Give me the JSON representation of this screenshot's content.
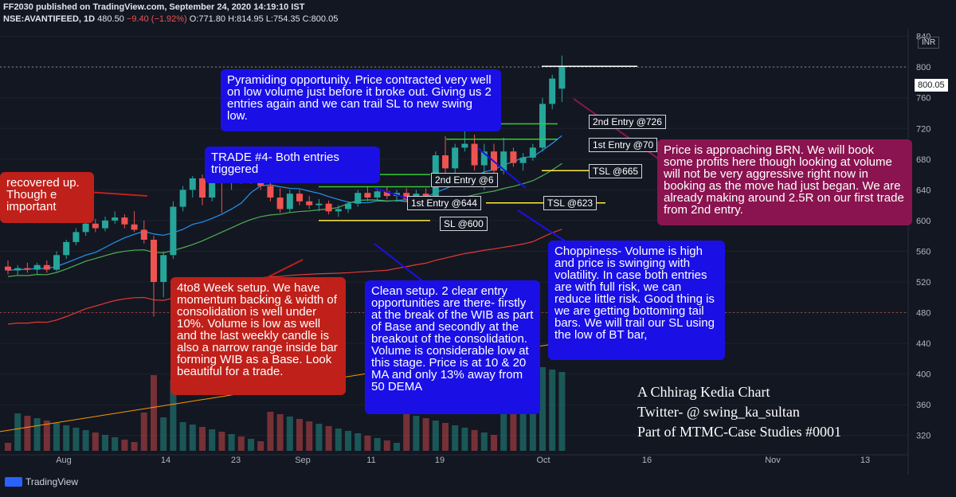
{
  "header": {
    "publisher": "FF2030 published on TradingView.com, September 24, 2020 14:19:10 IST",
    "symbol": "NSE:AVANTIFEED, 1D",
    "last": "480.50",
    "change": "−9.40 (−1.92%)",
    "ohlc": "O:771.80 H:814.95 L:754.35 C:800.05"
  },
  "price_tag": "800.05",
  "currency": "INR",
  "annotations": {
    "pyramiding": "Pyramiding opportunity. Price contracted very well on low volume just before it broke out. Giving us 2 entries again and we can trail SL to new swing low.",
    "trade4": "TRADE #4- Both entries triggered",
    "recovered": "recovered up. Though e important",
    "setup": "4to8 Week setup. We have momentum backing & width of consolidation is well under 10%. Volume is low as well and the last weekly candle is also a narrow range inside bar forming WIB as a Base. Look beautiful for a trade.",
    "clean": "Clean setup. 2 clear entry opportunities are there- firstly at the break of the WIB as part of Base and secondly at the breakout of the consolidation. Volume is considerable low at this stage. Price is at 10 & 20 MA and only 13% away from 50 DEMA",
    "choppiness": "Choppiness- Volume is high and price is swinging with volatility. In case both entries are with full risk, we can reduce little risk. Good thing is we are getting bottoming tail bars. We will trail our SL using the low of BT bar,",
    "brn": "Price is approaching BRN. We will book some profits here though looking at volume will not be very aggressive right now in booking as the move had just began. We are already making around 2.5R on our first trade from 2nd entry."
  },
  "levels": {
    "entry2_new": "2nd Entry @726",
    "entry1_new": "1st Entry @70",
    "tsl665": "TSL @665",
    "entry2_old": "2nd Entry @6",
    "entry1_old": "1st Entry @644",
    "tsl623": "TSL @623",
    "sl600": "SL @600"
  },
  "credit": {
    "line1": "A Chhirag Kedia Chart",
    "line2": "Twitter- @ swing_ka_sultan",
    "line3": "Part of MTMC-Case Studies #0001"
  },
  "brand": "TradingView",
  "colors": {
    "up": "#26a69a",
    "down": "#ef5350",
    "ma10": "#2196f3",
    "ma20": "#4caf50",
    "dema50": "#e53935",
    "level_green": "#33cc33",
    "level_yellow": "#ffeb3b",
    "trend": "#ff9800"
  },
  "chart_data": {
    "type": "candlestick",
    "y_axis_ticks": [
      840,
      800,
      760,
      720,
      680,
      640,
      600,
      560,
      520,
      480,
      440,
      400,
      360,
      320
    ],
    "ylim": [
      300,
      850
    ],
    "x_tick_labels": [
      "Aug",
      "14",
      "23",
      "Sep",
      "11",
      "19",
      "Oct",
      "16",
      "Nov",
      "13"
    ],
    "candles": [
      {
        "o": 540,
        "h": 548,
        "l": 530,
        "c": 535
      },
      {
        "o": 535,
        "h": 542,
        "l": 528,
        "c": 538
      },
      {
        "o": 538,
        "h": 545,
        "l": 532,
        "c": 536
      },
      {
        "o": 536,
        "h": 545,
        "l": 530,
        "c": 542
      },
      {
        "o": 542,
        "h": 548,
        "l": 532,
        "c": 536
      },
      {
        "o": 536,
        "h": 560,
        "l": 534,
        "c": 555
      },
      {
        "o": 555,
        "h": 575,
        "l": 550,
        "c": 572
      },
      {
        "o": 572,
        "h": 590,
        "l": 568,
        "c": 585
      },
      {
        "o": 585,
        "h": 600,
        "l": 580,
        "c": 596
      },
      {
        "o": 596,
        "h": 602,
        "l": 585,
        "c": 590
      },
      {
        "o": 590,
        "h": 605,
        "l": 586,
        "c": 600
      },
      {
        "o": 600,
        "h": 612,
        "l": 596,
        "c": 604
      },
      {
        "o": 604,
        "h": 608,
        "l": 590,
        "c": 595
      },
      {
        "o": 595,
        "h": 612,
        "l": 585,
        "c": 588
      },
      {
        "o": 588,
        "h": 600,
        "l": 570,
        "c": 575
      },
      {
        "o": 575,
        "h": 580,
        "l": 475,
        "c": 520
      },
      {
        "o": 520,
        "h": 560,
        "l": 500,
        "c": 555
      },
      {
        "o": 555,
        "h": 625,
        "l": 550,
        "c": 618
      },
      {
        "o": 618,
        "h": 645,
        "l": 612,
        "c": 640
      },
      {
        "o": 640,
        "h": 658,
        "l": 630,
        "c": 655
      },
      {
        "o": 655,
        "h": 660,
        "l": 620,
        "c": 630
      },
      {
        "o": 630,
        "h": 660,
        "l": 625,
        "c": 652
      },
      {
        "o": 652,
        "h": 662,
        "l": 610,
        "c": 650
      },
      {
        "o": 650,
        "h": 660,
        "l": 640,
        "c": 655
      },
      {
        "o": 655,
        "h": 662,
        "l": 648,
        "c": 652
      },
      {
        "o": 652,
        "h": 660,
        "l": 648,
        "c": 656
      },
      {
        "o": 656,
        "h": 665,
        "l": 640,
        "c": 645
      },
      {
        "o": 645,
        "h": 652,
        "l": 625,
        "c": 630
      },
      {
        "o": 630,
        "h": 642,
        "l": 610,
        "c": 615
      },
      {
        "o": 615,
        "h": 640,
        "l": 610,
        "c": 635
      },
      {
        "o": 635,
        "h": 640,
        "l": 620,
        "c": 625
      },
      {
        "o": 625,
        "h": 632,
        "l": 615,
        "c": 620
      },
      {
        "o": 620,
        "h": 628,
        "l": 612,
        "c": 622
      },
      {
        "o": 622,
        "h": 626,
        "l": 608,
        "c": 612
      },
      {
        "o": 612,
        "h": 620,
        "l": 605,
        "c": 615
      },
      {
        "o": 615,
        "h": 625,
        "l": 610,
        "c": 622
      },
      {
        "o": 622,
        "h": 640,
        "l": 618,
        "c": 636
      },
      {
        "o": 636,
        "h": 645,
        "l": 625,
        "c": 630
      },
      {
        "o": 630,
        "h": 640,
        "l": 626,
        "c": 638
      },
      {
        "o": 638,
        "h": 644,
        "l": 628,
        "c": 632
      },
      {
        "o": 632,
        "h": 640,
        "l": 624,
        "c": 636
      },
      {
        "o": 636,
        "h": 642,
        "l": 625,
        "c": 628
      },
      {
        "o": 628,
        "h": 640,
        "l": 622,
        "c": 635
      },
      {
        "o": 635,
        "h": 642,
        "l": 618,
        "c": 625
      },
      {
        "o": 625,
        "h": 690,
        "l": 620,
        "c": 685
      },
      {
        "o": 685,
        "h": 710,
        "l": 660,
        "c": 668
      },
      {
        "o": 668,
        "h": 700,
        "l": 660,
        "c": 695
      },
      {
        "o": 695,
        "h": 725,
        "l": 690,
        "c": 700
      },
      {
        "o": 700,
        "h": 712,
        "l": 665,
        "c": 672
      },
      {
        "o": 672,
        "h": 700,
        "l": 640,
        "c": 690
      },
      {
        "o": 690,
        "h": 700,
        "l": 655,
        "c": 665
      },
      {
        "o": 665,
        "h": 708,
        "l": 660,
        "c": 690
      },
      {
        "o": 690,
        "h": 695,
        "l": 670,
        "c": 675
      },
      {
        "o": 675,
        "h": 688,
        "l": 665,
        "c": 682
      },
      {
        "o": 682,
        "h": 700,
        "l": 678,
        "c": 695
      },
      {
        "o": 695,
        "h": 760,
        "l": 690,
        "c": 752
      },
      {
        "o": 752,
        "h": 790,
        "l": 745,
        "c": 785
      },
      {
        "o": 771.8,
        "h": 814.95,
        "l": 754.35,
        "c": 800.05
      }
    ]
  }
}
